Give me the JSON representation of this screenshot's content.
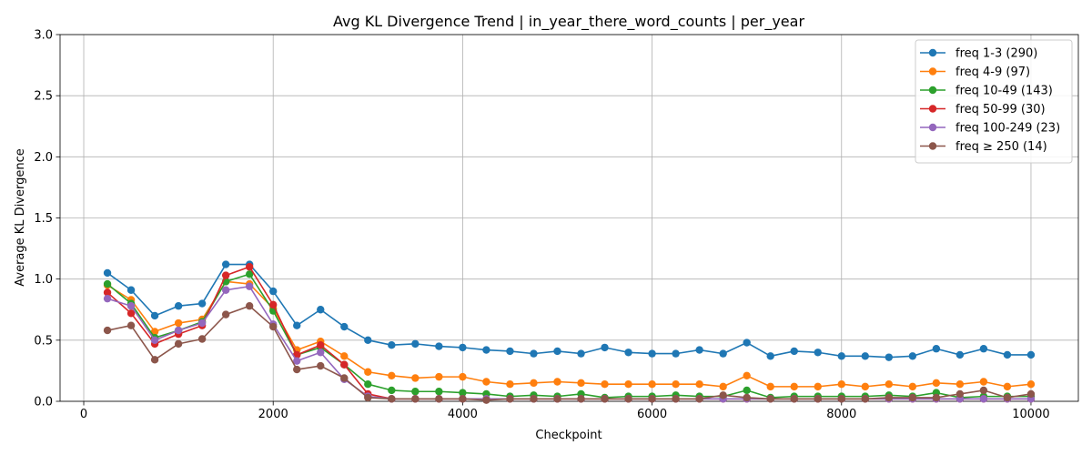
{
  "chart_data": {
    "type": "line",
    "title": "Avg KL Divergence Trend | in_year_there_word_counts | per_year",
    "xlabel": "Checkpoint",
    "ylabel": "Average KL Divergence",
    "xlim": [
      -250,
      10500
    ],
    "ylim": [
      0,
      3.0
    ],
    "xticks": [
      0,
      2000,
      4000,
      6000,
      8000,
      10000
    ],
    "yticks": [
      0.0,
      0.5,
      1.0,
      1.5,
      2.0,
      2.5,
      3.0
    ],
    "xtick_labels": [
      "0",
      "2000",
      "4000",
      "6000",
      "8000",
      "10000"
    ],
    "ytick_labels": [
      "0.0",
      "0.5",
      "1.0",
      "1.5",
      "2.0",
      "2.5",
      "3.0"
    ],
    "grid": true,
    "legend_position": "top-right",
    "x": [
      250,
      500,
      750,
      1000,
      1250,
      1500,
      1750,
      2000,
      2250,
      2500,
      2750,
      3000,
      3250,
      3500,
      3750,
      4000,
      4250,
      4500,
      4750,
      5000,
      5250,
      5500,
      5750,
      6000,
      6250,
      6500,
      6750,
      7000,
      7250,
      7500,
      7750,
      8000,
      8250,
      8500,
      8750,
      9000,
      9250,
      9500,
      9750,
      10000
    ],
    "series": [
      {
        "name": "freq 1-3 (290)",
        "color": "#1f77b4",
        "values": [
          1.05,
          0.91,
          0.7,
          0.78,
          0.8,
          1.12,
          1.12,
          0.9,
          0.62,
          0.75,
          0.61,
          0.5,
          0.46,
          0.47,
          0.45,
          0.44,
          0.42,
          0.41,
          0.39,
          0.41,
          0.39,
          0.44,
          0.4,
          0.39,
          0.39,
          0.42,
          0.39,
          0.48,
          0.37,
          0.41,
          0.4,
          0.37,
          0.37,
          0.36,
          0.37,
          0.43,
          0.38,
          0.43,
          0.38,
          0.38
        ]
      },
      {
        "name": "freq 4-9 (97)",
        "color": "#ff7f0e",
        "values": [
          0.95,
          0.83,
          0.57,
          0.64,
          0.67,
          0.98,
          0.96,
          0.76,
          0.42,
          0.49,
          0.37,
          0.24,
          0.21,
          0.19,
          0.2,
          0.2,
          0.16,
          0.14,
          0.15,
          0.16,
          0.15,
          0.14,
          0.14,
          0.14,
          0.14,
          0.14,
          0.12,
          0.21,
          0.12,
          0.12,
          0.12,
          0.14,
          0.12,
          0.14,
          0.12,
          0.15,
          0.14,
          0.16,
          0.12,
          0.14
        ]
      },
      {
        "name": "freq 10-49 (143)",
        "color": "#2ca02c",
        "values": [
          0.96,
          0.8,
          0.52,
          0.58,
          0.65,
          0.98,
          1.04,
          0.74,
          0.38,
          0.44,
          0.3,
          0.14,
          0.09,
          0.08,
          0.08,
          0.07,
          0.06,
          0.04,
          0.05,
          0.04,
          0.06,
          0.03,
          0.04,
          0.04,
          0.05,
          0.04,
          0.04,
          0.09,
          0.03,
          0.04,
          0.04,
          0.04,
          0.04,
          0.05,
          0.04,
          0.07,
          0.03,
          0.04,
          0.04,
          0.04
        ]
      },
      {
        "name": "freq 50-99 (30)",
        "color": "#d62728",
        "values": [
          0.89,
          0.72,
          0.47,
          0.55,
          0.62,
          1.03,
          1.1,
          0.79,
          0.38,
          0.46,
          0.3,
          0.06,
          0.02,
          0.02,
          0.02,
          0.02,
          0.02,
          0.02,
          0.02,
          0.02,
          0.02,
          0.02,
          0.02,
          0.02,
          0.02,
          0.02,
          0.02,
          0.02,
          0.02,
          0.02,
          0.02,
          0.02,
          0.02,
          0.02,
          0.02,
          0.02,
          0.02,
          0.02,
          0.02,
          0.02
        ]
      },
      {
        "name": "freq 100-249 (23)",
        "color": "#9467bd",
        "values": [
          0.84,
          0.78,
          0.5,
          0.58,
          0.64,
          0.91,
          0.94,
          0.63,
          0.33,
          0.4,
          0.18,
          0.04,
          0.02,
          0.02,
          0.02,
          0.02,
          0.02,
          0.02,
          0.02,
          0.02,
          0.02,
          0.02,
          0.02,
          0.02,
          0.02,
          0.02,
          0.02,
          0.02,
          0.02,
          0.02,
          0.02,
          0.02,
          0.02,
          0.02,
          0.02,
          0.02,
          0.02,
          0.02,
          0.02,
          0.02
        ]
      },
      {
        "name": "freq ≥ 250 (14)",
        "color": "#8c564b",
        "values": [
          0.58,
          0.62,
          0.34,
          0.47,
          0.51,
          0.71,
          0.78,
          0.61,
          0.26,
          0.29,
          0.19,
          0.03,
          0.02,
          0.02,
          0.02,
          0.02,
          0.01,
          0.02,
          0.02,
          0.02,
          0.02,
          0.02,
          0.02,
          0.02,
          0.02,
          0.02,
          0.05,
          0.03,
          0.02,
          0.02,
          0.02,
          0.02,
          0.02,
          0.03,
          0.03,
          0.03,
          0.06,
          0.09,
          0.03,
          0.06
        ]
      }
    ]
  }
}
